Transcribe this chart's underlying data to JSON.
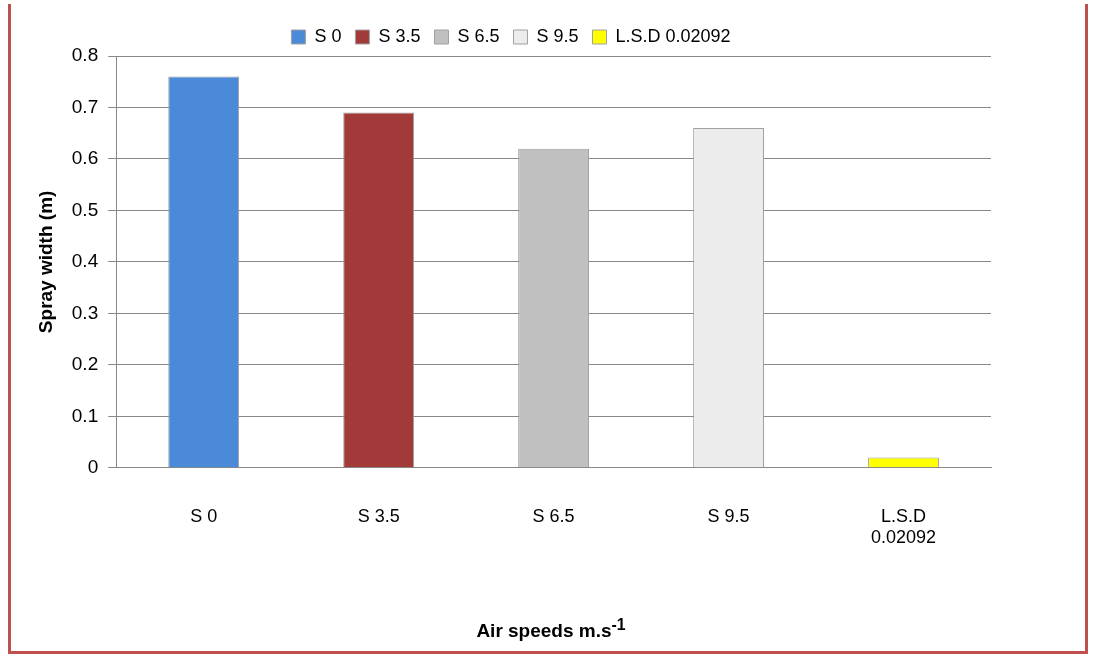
{
  "chart_data": {
    "type": "bar",
    "categories": [
      "S 0",
      "S 3.5",
      "S 6.5",
      "S 9.5",
      "L.S.D 0.02092"
    ],
    "series": [
      {
        "name": "S 0",
        "color": "#4a8ad8",
        "values": [
          0.76,
          null,
          null,
          null,
          null
        ]
      },
      {
        "name": "S 3.5",
        "color": "#a33a3a",
        "values": [
          null,
          0.69,
          null,
          null,
          null
        ]
      },
      {
        "name": "S 6.5",
        "color": "#c0c0c0",
        "values": [
          null,
          null,
          0.62,
          null,
          null
        ]
      },
      {
        "name": "S 9.5",
        "color": "#ececec",
        "values": [
          null,
          null,
          null,
          0.66,
          null
        ]
      },
      {
        "name": "L.S.D 0.02092",
        "color": "#ffff00",
        "values": [
          null,
          null,
          null,
          null,
          0.02
        ]
      }
    ],
    "ylabel": "Spray width (m)",
    "xlabel": "Air speeds m.s$^{-1}$",
    "ylim": [
      0,
      0.8
    ],
    "yticks": [
      0,
      0.1,
      0.2,
      0.3,
      0.4,
      0.5,
      0.6,
      0.7,
      0.8
    ],
    "grid": "y",
    "legend": "top"
  }
}
